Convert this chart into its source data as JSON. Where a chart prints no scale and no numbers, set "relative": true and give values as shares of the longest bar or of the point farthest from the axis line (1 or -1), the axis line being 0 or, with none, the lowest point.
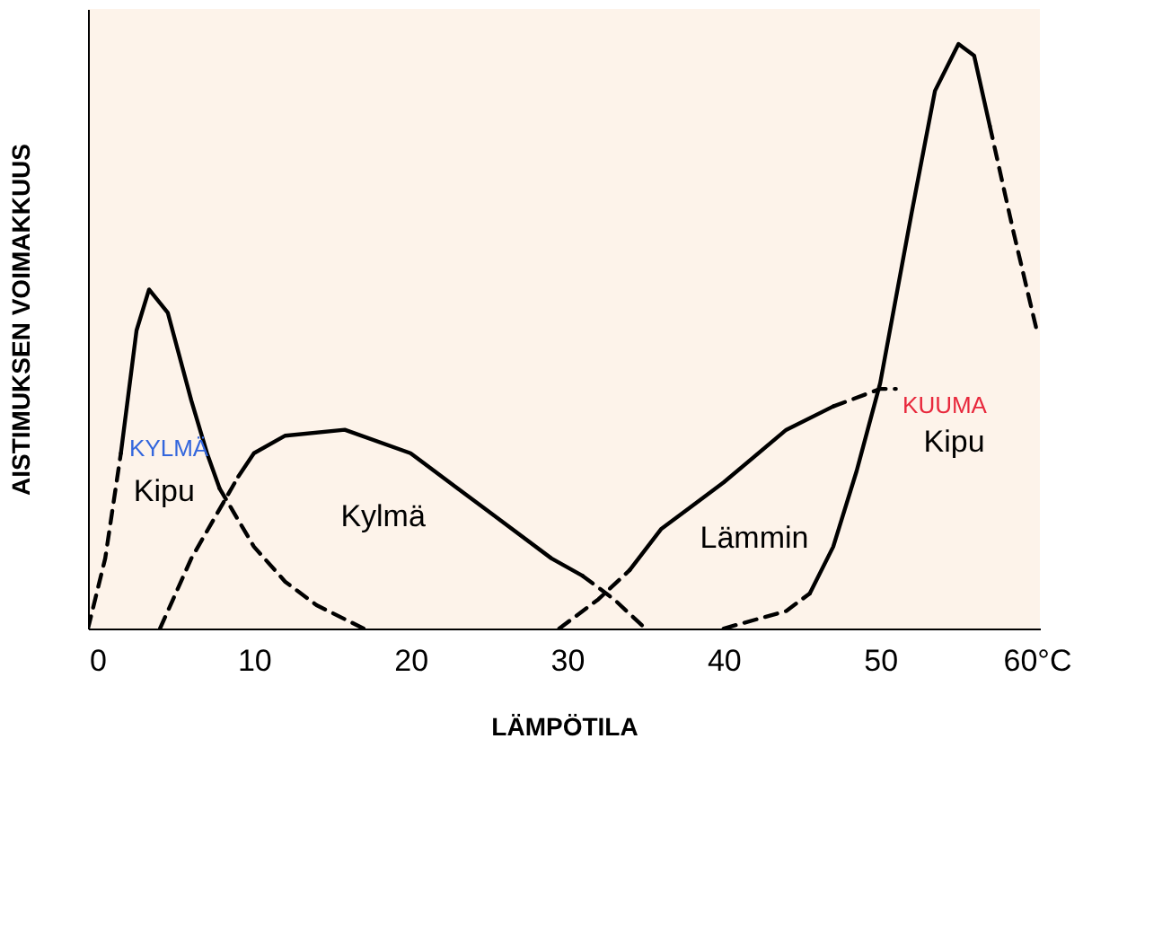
{
  "chart_data": {
    "type": "line",
    "relative": true,
    "xlabel": "LÄMPÖTILA",
    "ylabel": "AISTIMUKSEN VOIMAKKUUS",
    "xlim": [
      -0.6,
      60.2
    ],
    "xticks": [
      0,
      10,
      20,
      30,
      40,
      50,
      {
        "value": 60,
        "label": "60°C"
      }
    ],
    "grid": false,
    "marker": "none",
    "series": [
      {
        "color": "#000000",
        "line_style": "dashed",
        "x": [
          -0.6,
          0.5,
          1.5
        ],
        "values": [
          0,
          0.12,
          0.3
        ]
      },
      {
        "color": "#000000",
        "line_style": "solid",
        "x": [
          1.5,
          2.5,
          3.3,
          4.5,
          6,
          7,
          7.8
        ],
        "values": [
          0.3,
          0.51,
          0.58,
          0.54,
          0.39,
          0.3,
          0.24
        ]
      },
      {
        "color": "#000000",
        "line_style": "dashed",
        "x": [
          7.8,
          10,
          12,
          14,
          17
        ],
        "values": [
          0.24,
          0.14,
          0.08,
          0.04,
          0
        ]
      },
      {
        "color": "#000000",
        "line_style": "dashed",
        "x": [
          4,
          6,
          9
        ],
        "values": [
          0,
          0.12,
          0.26
        ]
      },
      {
        "color": "#000000",
        "line_style": "solid",
        "x": [
          9,
          10,
          12,
          15.8,
          20,
          25,
          29,
          31
        ],
        "values": [
          0.26,
          0.3,
          0.33,
          0.34,
          0.3,
          0.2,
          0.12,
          0.09
        ]
      },
      {
        "color": "#000000",
        "line_style": "dashed",
        "x": [
          31,
          33,
          35
        ],
        "values": [
          0.09,
          0.05,
          0
        ]
      },
      {
        "color": "#000000",
        "line_style": "dashed",
        "x": [
          29.5,
          32,
          34
        ],
        "values": [
          0,
          0.05,
          0.1
        ]
      },
      {
        "color": "#000000",
        "line_style": "solid",
        "x": [
          34,
          36,
          40,
          44,
          47
        ],
        "values": [
          0.1,
          0.17,
          0.25,
          0.34,
          0.38
        ]
      },
      {
        "color": "#000000",
        "line_style": "dashed",
        "x": [
          47,
          50,
          51
        ],
        "values": [
          0.38,
          0.41,
          0.41
        ]
      },
      {
        "color": "#000000",
        "line_style": "dashed",
        "x": [
          40,
          44,
          45.5
        ],
        "values": [
          0,
          0.03,
          0.06
        ]
      },
      {
        "color": "#000000",
        "line_style": "solid",
        "x": [
          45.5,
          47,
          48.5,
          50,
          52,
          53.5,
          55,
          56,
          57
        ],
        "values": [
          0.06,
          0.14,
          0.27,
          0.42,
          0.71,
          0.92,
          1,
          0.98,
          0.86
        ]
      },
      {
        "color": "#000000",
        "line_style": "dashed",
        "x": [
          57,
          58.5,
          60
        ],
        "values": [
          0.86,
          0.68,
          0.51
        ]
      }
    ],
    "annotations": [
      "KYLMÄ",
      "Kipu",
      "Kylmä",
      "Lämmin",
      "KUUMA",
      "Kipu"
    ]
  }
}
